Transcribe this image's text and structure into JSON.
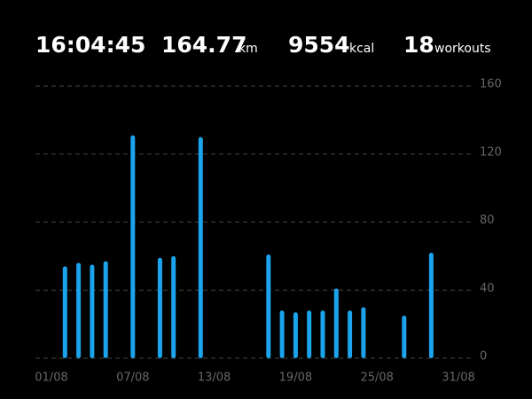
{
  "summary": [
    {
      "value": "16:04:45"
    },
    {
      "value": "164.77",
      "unit": "km"
    },
    {
      "value": "9554",
      "unit": "kcal"
    },
    {
      "value": "18",
      "unit": "workouts"
    }
  ],
  "chart_data": {
    "type": "bar",
    "categories": [
      "01/08",
      null,
      null,
      null,
      null,
      null,
      "07/08",
      null,
      null,
      null,
      null,
      null,
      "13/08",
      null,
      null,
      null,
      null,
      null,
      "19/08",
      null,
      null,
      null,
      null,
      null,
      "25/08",
      null,
      null,
      null,
      null,
      null,
      "31/08"
    ],
    "values": [
      null,
      54,
      56,
      55,
      57,
      null,
      131,
      null,
      59,
      60,
      null,
      130,
      null,
      null,
      null,
      null,
      61,
      28,
      27,
      28,
      28,
      41,
      28,
      30,
      null,
      null,
      25,
      null,
      62,
      null,
      null
    ],
    "color": "#1ba3ec",
    "ylim": [
      0,
      160
    ],
    "yticks": [
      0,
      40,
      80,
      120,
      160
    ],
    "grid": true
  }
}
